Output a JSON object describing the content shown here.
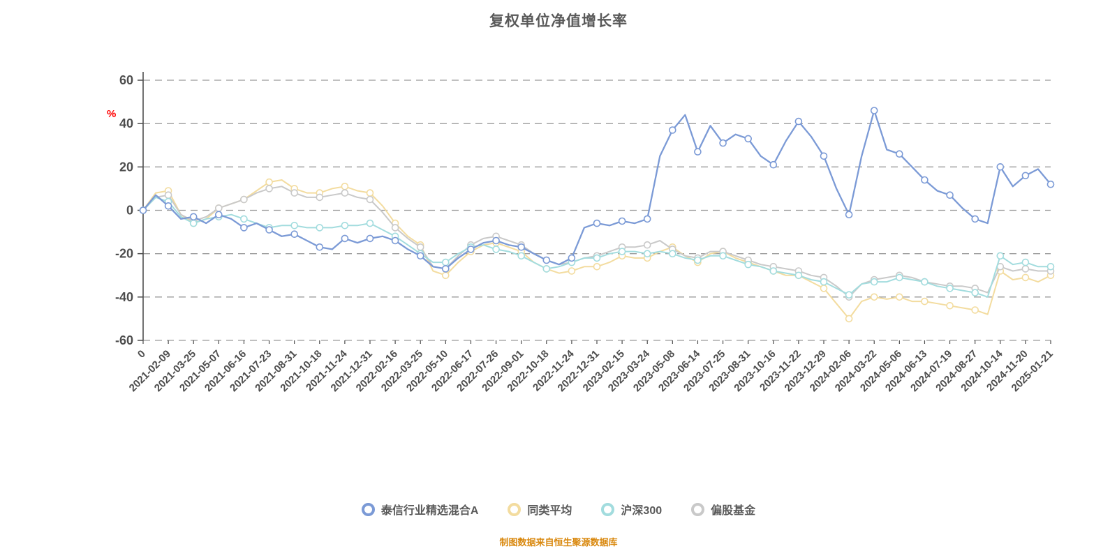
{
  "header": {
    "title": "复权单位净值增长率"
  },
  "footer": {
    "source": "制图数据来自恒生聚源数据库"
  },
  "chart_data": {
    "type": "line",
    "title": "复权单位净值增长率",
    "ylabel": "%",
    "ylabel_color": "#ff0000",
    "ylim": [
      -60,
      60
    ],
    "y_ticks": [
      60,
      40,
      20,
      0,
      -20,
      -40,
      -60
    ],
    "grid": "horizontal dashed",
    "legend_position": "bottom",
    "colors": {
      "title": "#595959",
      "axis": "#4d4d4d",
      "grid": "#9a9a9a",
      "tick_label": "#4d4d4d",
      "source": "#d9880e"
    },
    "categories": [
      "0",
      "2021-02-09",
      "2021-03-25",
      "2021-05-07",
      "2021-06-16",
      "2021-07-23",
      "2021-08-31",
      "2021-10-18",
      "2021-11-24",
      "2021-12-31",
      "2022-02-16",
      "2022-03-25",
      "2022-05-10",
      "2022-06-17",
      "2022-07-26",
      "2022-09-01",
      "2022-10-18",
      "2022-11-24",
      "2022-12-31",
      "2023-02-15",
      "2023-03-24",
      "2023-05-08",
      "2023-06-14",
      "2023-07-25",
      "2023-08-31",
      "2023-10-16",
      "2023-11-22",
      "2023-12-29",
      "2024-02-06",
      "2024-03-22",
      "2024-05-06",
      "2024-06-13",
      "2024-07-19",
      "2024-08-27",
      "2024-10-14",
      "2024-11-20",
      "2025-01-21"
    ],
    "points_per_tick_interval": 2,
    "series": [
      {
        "key": "fund-a",
        "name": "泰信行业精选混合A",
        "color": "#7b9ad6",
        "values": [
          0,
          7,
          2,
          -4,
          -3,
          -6,
          -2,
          -4,
          -8,
          -6,
          -9,
          -12,
          -11,
          -14,
          -17,
          -18,
          -13,
          -15,
          -13,
          -12,
          -14,
          -18,
          -21,
          -26,
          -27,
          -22,
          -18,
          -15,
          -14,
          -16,
          -17,
          -20,
          -23,
          -25,
          -22,
          -8,
          -6,
          -7,
          -5,
          -6,
          -4,
          25,
          37,
          44,
          27,
          39,
          31,
          35,
          33,
          25,
          21,
          32,
          41,
          34,
          25,
          10,
          -2,
          25,
          46,
          28,
          26,
          20,
          14,
          9,
          7,
          1,
          -4,
          -6,
          20,
          11,
          16,
          19,
          12
        ]
      },
      {
        "key": "peer-average",
        "name": "同类平均",
        "color": "#f3dc9f",
        "values": [
          0,
          8,
          9,
          -2,
          -6,
          -4,
          1,
          3,
          5,
          9,
          13,
          14,
          10,
          8,
          8,
          10,
          11,
          9,
          8,
          2,
          -6,
          -12,
          -16,
          -28,
          -30,
          -24,
          -19,
          -16,
          -15,
          -17,
          -19,
          -24,
          -27,
          -29,
          -28,
          -26,
          -26,
          -24,
          -21,
          -22,
          -22,
          -19,
          -17,
          -21,
          -24,
          -20,
          -19,
          -22,
          -24,
          -26,
          -28,
          -30,
          -30,
          -33,
          -36,
          -43,
          -50,
          -42,
          -40,
          -41,
          -40,
          -42,
          -42,
          -43,
          -44,
          -45,
          -46,
          -48,
          -28,
          -32,
          -31,
          -33,
          -30
        ]
      },
      {
        "key": "hs300",
        "name": "沪深300",
        "color": "#a2dcde",
        "values": [
          0,
          6,
          4,
          -3,
          -6,
          -4,
          -3,
          -2,
          -4,
          -6,
          -8,
          -7,
          -7,
          -8,
          -8,
          -8,
          -7,
          -7,
          -6,
          -9,
          -12,
          -16,
          -20,
          -24,
          -24,
          -20,
          -17,
          -16,
          -18,
          -19,
          -21,
          -24,
          -27,
          -26,
          -24,
          -22,
          -22,
          -20,
          -19,
          -19,
          -20,
          -19,
          -20,
          -22,
          -23,
          -21,
          -21,
          -23,
          -25,
          -26,
          -28,
          -29,
          -30,
          -32,
          -33,
          -36,
          -39,
          -34,
          -33,
          -33,
          -31,
          -32,
          -33,
          -35,
          -36,
          -37,
          -38,
          -40,
          -21,
          -25,
          -24,
          -26,
          -26
        ]
      },
      {
        "key": "equity-fund",
        "name": "偏股基金",
        "color": "#c9c9c9",
        "values": [
          0,
          6,
          7,
          -2,
          -5,
          -3,
          1,
          3,
          5,
          8,
          10,
          11,
          8,
          6,
          6,
          7,
          8,
          6,
          5,
          -1,
          -8,
          -13,
          -17,
          -26,
          -27,
          -21,
          -16,
          -13,
          -12,
          -14,
          -16,
          -20,
          -23,
          -25,
          -24,
          -22,
          -21,
          -19,
          -17,
          -17,
          -16,
          -14,
          -18,
          -21,
          -22,
          -19,
          -19,
          -21,
          -23,
          -25,
          -26,
          -27,
          -28,
          -30,
          -31,
          -35,
          -40,
          -34,
          -32,
          -31,
          -30,
          -31,
          -33,
          -34,
          -35,
          -35,
          -36,
          -38,
          -26,
          -28,
          -27,
          -28,
          -28
        ]
      }
    ]
  }
}
